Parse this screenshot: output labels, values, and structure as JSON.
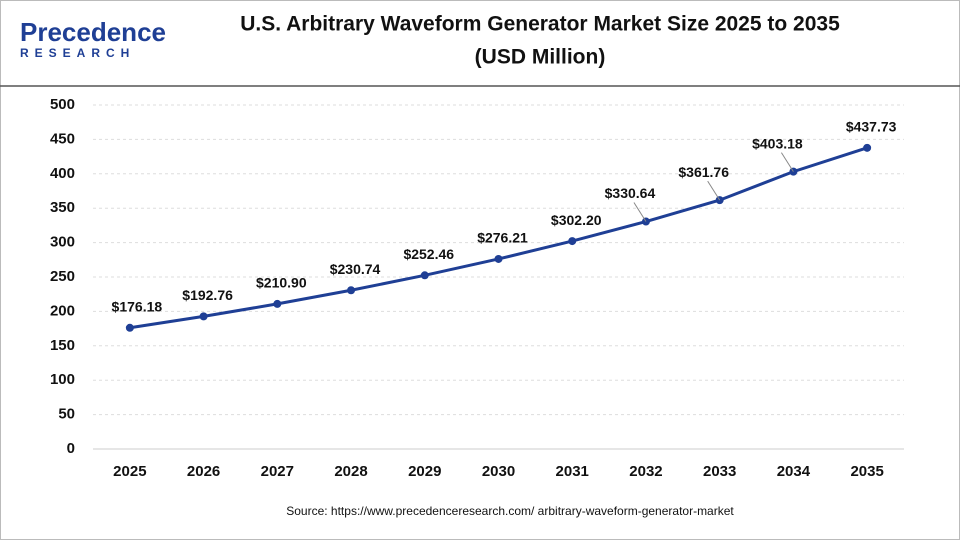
{
  "logo": {
    "name": "Precedence",
    "tagline": "RESEARCH"
  },
  "chart_data": {
    "type": "line",
    "title": "U.S. Arbitrary Waveform Generator Market Size 2025 to 2035",
    "subtitle": "(USD Million)",
    "categories": [
      "2025",
      "2026",
      "2027",
      "2028",
      "2029",
      "2030",
      "2031",
      "2032",
      "2033",
      "2034",
      "2035"
    ],
    "series": [
      {
        "name": "Market Size",
        "color": "#1f3f95",
        "values": [
          176.18,
          192.76,
          210.9,
          230.74,
          252.46,
          276.21,
          302.2,
          330.64,
          361.76,
          403.18,
          437.73
        ],
        "value_labels": [
          "$176.18",
          "$192.76",
          "$210.90",
          "$230.74",
          "$252.46",
          "$276.21",
          "$302.20",
          "$330.64",
          "$361.76",
          "$403.18",
          "$437.73"
        ]
      }
    ],
    "ylim": [
      0,
      500
    ],
    "yticks": [
      0,
      50,
      100,
      150,
      200,
      250,
      300,
      350,
      400,
      450,
      500
    ],
    "grid": true,
    "source": "Source: https://www.precedenceresearch.com/ arbitrary-waveform-generator-market"
  }
}
